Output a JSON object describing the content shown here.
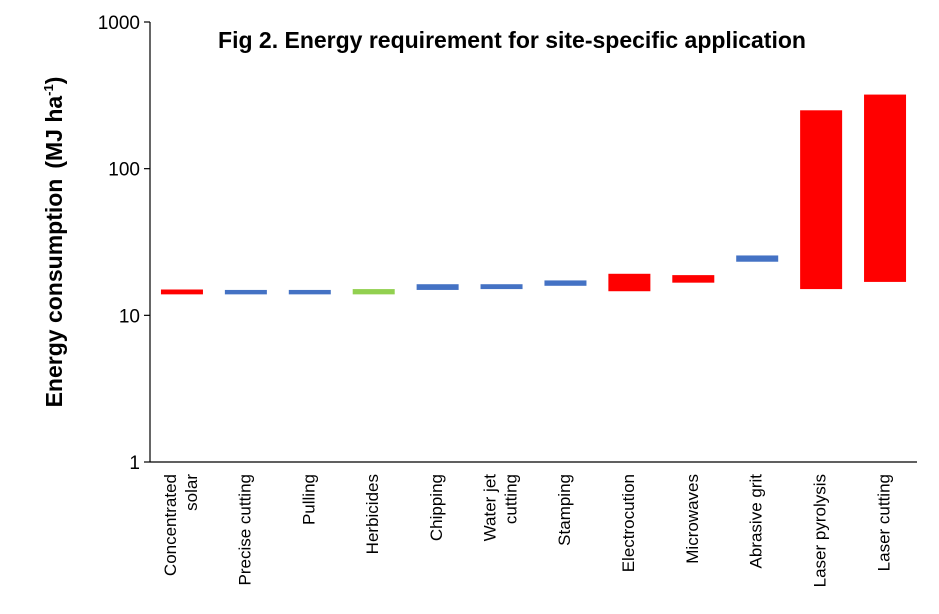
{
  "chart_data": {
    "type": "bar",
    "title": "Fig 2. Energy requirement for site-specific application",
    "ylabel": {
      "main": "Energy consumption",
      "unit_open": "(MJ ha",
      "unit_sup": "-1",
      "unit_close": ")"
    },
    "xlabel": "",
    "yscale": "log",
    "ylim": [
      1,
      1000
    ],
    "yticks": [
      "1",
      "10",
      "100",
      "1000"
    ],
    "categories": [
      [
        "Concentrated",
        "solar"
      ],
      [
        "Precise cutting"
      ],
      [
        "Pulling"
      ],
      [
        "Herbicides"
      ],
      [
        "Chipping"
      ],
      [
        "Water jet",
        "cutting"
      ],
      [
        "Stamping"
      ],
      [
        "Electrocution"
      ],
      [
        "Microwaves"
      ],
      [
        "Abrasive grit"
      ],
      [
        "Laser pyrolysis"
      ],
      [
        "Laser cutting"
      ]
    ],
    "ranges": [
      {
        "low": 13.9,
        "high": 15.0,
        "color": "#ff0000"
      },
      {
        "low": 13.9,
        "high": 14.9,
        "color": "#4472c4"
      },
      {
        "low": 13.9,
        "high": 14.9,
        "color": "#4472c4"
      },
      {
        "low": 13.9,
        "high": 15.1,
        "color": "#92d050"
      },
      {
        "low": 14.9,
        "high": 16.3,
        "color": "#4472c4"
      },
      {
        "low": 15.1,
        "high": 16.3,
        "color": "#4472c4"
      },
      {
        "low": 15.9,
        "high": 17.3,
        "color": "#4472c4"
      },
      {
        "low": 14.6,
        "high": 19.2,
        "color": "#ff0000"
      },
      {
        "low": 16.7,
        "high": 18.8,
        "color": "#ff0000"
      },
      {
        "low": 23.2,
        "high": 25.6,
        "color": "#4472c4"
      },
      {
        "low": 15.1,
        "high": 250,
        "color": "#ff0000"
      },
      {
        "low": 16.9,
        "high": 320,
        "color": "#ff0000"
      }
    ],
    "grid": false,
    "legend": "none"
  }
}
